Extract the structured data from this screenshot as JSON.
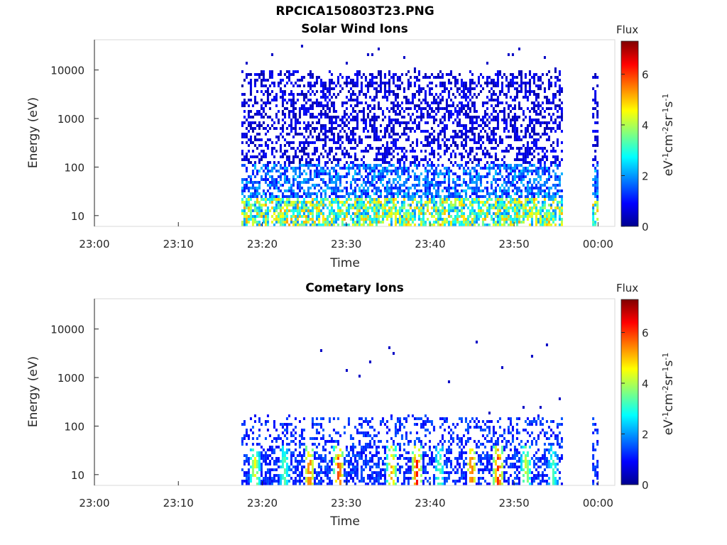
{
  "figure_title": "RPCICA150803T23.PNG",
  "colorbar": {
    "title": "Flux",
    "unit_label": "eV-1cm-2sr-1s-1",
    "min": 0,
    "max": 7.3,
    "ticks": [
      0,
      2,
      4,
      6
    ],
    "colormap": "jet"
  },
  "chart_data": [
    {
      "type": "heatmap",
      "title": "Solar Wind Ions",
      "xlabel": "Time",
      "ylabel": "Energy (eV)",
      "y_scale": "log",
      "ylim": [
        6,
        42000
      ],
      "xlim": [
        "23:00",
        "00:02"
      ],
      "x_ticks": [
        "23:00",
        "23:10",
        "23:20",
        "23:30",
        "23:40",
        "23:50",
        "00:00"
      ],
      "y_ticks": [
        10,
        100,
        1000,
        10000
      ],
      "data_segments": [
        {
          "start": "23:17.5",
          "end": "23:55.6"
        },
        {
          "start": "23:59.3",
          "end": "23:59.9"
        }
      ],
      "energy_max_typical": 8000,
      "flux_low_energy_typical": 3.5,
      "flux_high_energy_typical": 0.8
    },
    {
      "type": "heatmap",
      "title": "Cometary Ions",
      "xlabel": "Time",
      "ylabel": "Energy (eV)",
      "y_scale": "log",
      "ylim": [
        6,
        42000
      ],
      "xlim": [
        "23:00",
        "00:02"
      ],
      "x_ticks": [
        "23:00",
        "23:10",
        "23:20",
        "23:30",
        "23:40",
        "23:50",
        "00:00"
      ],
      "y_ticks": [
        10,
        100,
        1000,
        10000
      ],
      "data_segments": [
        {
          "start": "23:17.5",
          "end": "23:55.6"
        },
        {
          "start": "23:59.3",
          "end": "23:59.9"
        }
      ],
      "energy_max_typical": 150,
      "peak_bursts": [
        {
          "time": "23:19.0",
          "flux": 4.6
        },
        {
          "time": "23:22.5",
          "flux": 3.6
        },
        {
          "time": "23:25.5",
          "flux": 6.0
        },
        {
          "time": "23:29.0",
          "flux": 6.3
        },
        {
          "time": "23:35.3",
          "flux": 5.4
        },
        {
          "time": "23:38.3",
          "flux": 6.4
        },
        {
          "time": "23:41.0",
          "flux": 3.6
        },
        {
          "time": "23:44.8",
          "flux": 6.0
        },
        {
          "time": "23:48.0",
          "flux": 6.4
        },
        {
          "time": "23:51.3",
          "flux": 4.4
        },
        {
          "time": "23:54.5",
          "flux": 3.4
        }
      ]
    }
  ]
}
